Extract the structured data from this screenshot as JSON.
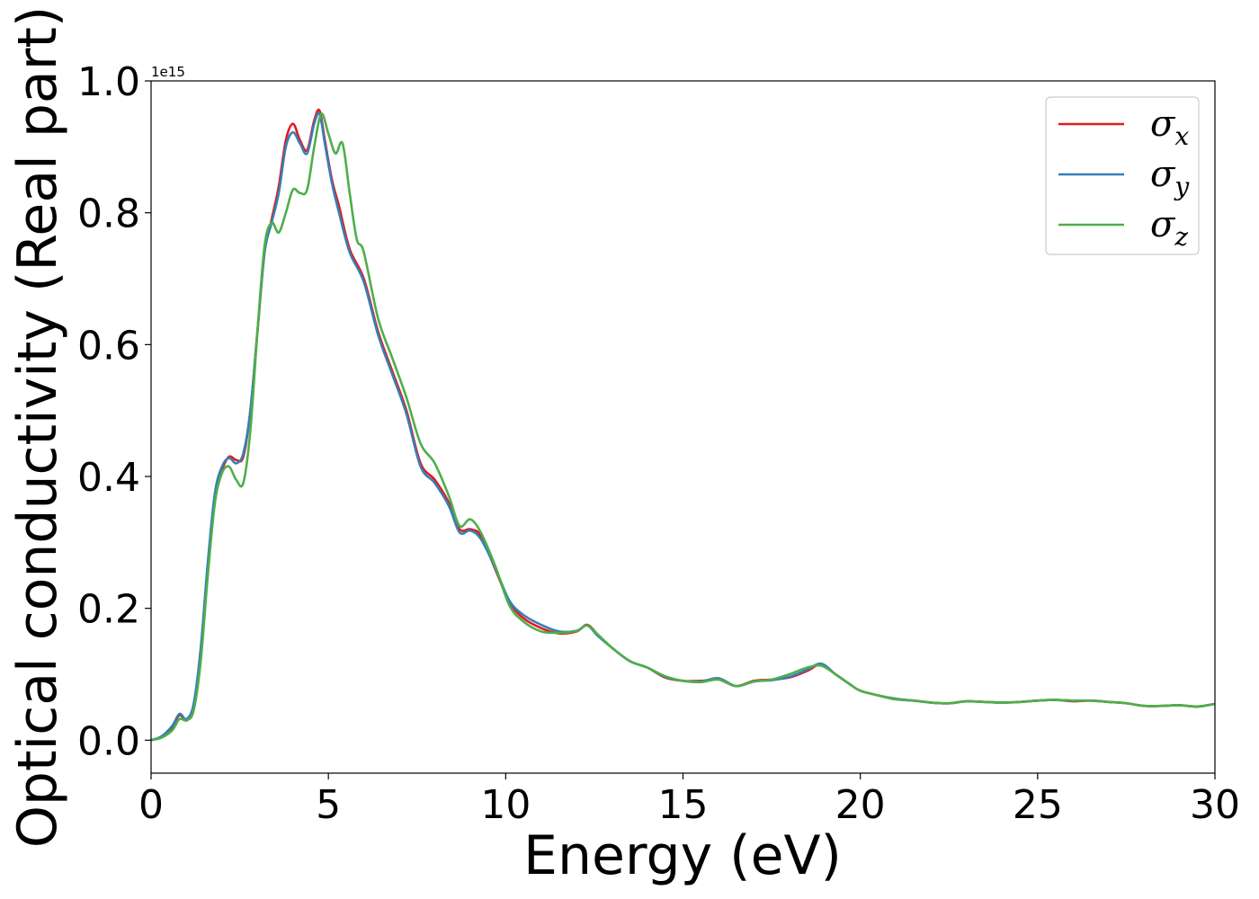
{
  "chart_data": {
    "type": "line",
    "title": "",
    "xlabel": "Energy (eV)",
    "ylabel": "Optical conductivity (Real part)",
    "y_offset_label": "1e15",
    "xlim": [
      0,
      30
    ],
    "ylim": [
      -0.05,
      1.0
    ],
    "xticks": [
      0,
      5,
      10,
      15,
      20,
      25,
      30
    ],
    "xtick_labels": [
      "0",
      "5",
      "10",
      "15",
      "20",
      "25",
      "30"
    ],
    "yticks": [
      0.0,
      0.2,
      0.4,
      0.6,
      0.8,
      1.0
    ],
    "ytick_labels": [
      "0.0",
      "0.2",
      "0.4",
      "0.6",
      "0.8",
      "1.0"
    ],
    "grid": false,
    "legend_position": "top-right",
    "series": [
      {
        "name": "σx",
        "legend_base": "σ",
        "legend_sub": "x",
        "color": "#e41a1c",
        "x": [
          0,
          0.3,
          0.6,
          0.8,
          1.0,
          1.2,
          1.4,
          1.6,
          1.8,
          2.0,
          2.2,
          2.4,
          2.6,
          2.8,
          3.0,
          3.2,
          3.4,
          3.6,
          3.8,
          4.0,
          4.2,
          4.4,
          4.6,
          4.75,
          4.9,
          5.1,
          5.3,
          5.6,
          6.0,
          6.4,
          6.8,
          7.2,
          7.6,
          8.0,
          8.4,
          8.7,
          9.0,
          9.3,
          9.7,
          10.1,
          10.5,
          11.0,
          11.5,
          12.0,
          12.3,
          12.6,
          13.0,
          13.5,
          14.0,
          14.5,
          15.0,
          15.5,
          16.0,
          16.5,
          17.0,
          17.5,
          18.0,
          18.5,
          18.9,
          19.3,
          19.7,
          20.0,
          20.5,
          21.0,
          21.5,
          22.0,
          22.5,
          23.0,
          23.5,
          24.0,
          24.5,
          25.0,
          25.5,
          26.0,
          26.5,
          27.0,
          27.5,
          28.0,
          28.5,
          29.0,
          29.5,
          30.0
        ],
        "y": [
          0.0,
          0.005,
          0.02,
          0.038,
          0.03,
          0.05,
          0.13,
          0.26,
          0.37,
          0.41,
          0.43,
          0.425,
          0.43,
          0.5,
          0.62,
          0.74,
          0.79,
          0.84,
          0.91,
          0.935,
          0.91,
          0.895,
          0.94,
          0.955,
          0.91,
          0.85,
          0.81,
          0.745,
          0.7,
          0.62,
          0.56,
          0.5,
          0.42,
          0.395,
          0.36,
          0.32,
          0.32,
          0.31,
          0.26,
          0.21,
          0.185,
          0.17,
          0.162,
          0.165,
          0.175,
          0.16,
          0.14,
          0.12,
          0.11,
          0.095,
          0.09,
          0.09,
          0.092,
          0.082,
          0.09,
          0.092,
          0.095,
          0.105,
          0.115,
          0.1,
          0.085,
          0.075,
          0.068,
          0.062,
          0.06,
          0.057,
          0.056,
          0.059,
          0.058,
          0.057,
          0.058,
          0.06,
          0.061,
          0.059,
          0.06,
          0.058,
          0.056,
          0.052,
          0.052,
          0.053,
          0.051,
          0.055
        ]
      },
      {
        "name": "σy",
        "legend_base": "σ",
        "legend_sub": "y",
        "color": "#377eb8",
        "x": [
          0,
          0.3,
          0.6,
          0.8,
          1.0,
          1.2,
          1.4,
          1.6,
          1.8,
          2.0,
          2.2,
          2.4,
          2.6,
          2.8,
          3.0,
          3.2,
          3.4,
          3.6,
          3.8,
          4.0,
          4.2,
          4.4,
          4.6,
          4.75,
          4.9,
          5.1,
          5.3,
          5.6,
          6.0,
          6.4,
          6.8,
          7.2,
          7.6,
          8.0,
          8.4,
          8.7,
          9.0,
          9.3,
          9.7,
          10.1,
          10.5,
          11.0,
          11.5,
          12.0,
          12.3,
          12.6,
          13.0,
          13.5,
          14.0,
          14.5,
          15.0,
          15.5,
          16.0,
          16.5,
          17.0,
          17.5,
          18.0,
          18.5,
          18.9,
          19.3,
          19.7,
          20.0,
          20.5,
          21.0,
          21.5,
          22.0,
          22.5,
          23.0,
          23.5,
          24.0,
          24.5,
          25.0,
          25.5,
          26.0,
          26.5,
          27.0,
          27.5,
          28.0,
          28.5,
          29.0,
          29.5,
          30.0
        ],
        "y": [
          0.0,
          0.006,
          0.022,
          0.04,
          0.032,
          0.055,
          0.14,
          0.27,
          0.375,
          0.415,
          0.428,
          0.42,
          0.435,
          0.5,
          0.62,
          0.74,
          0.785,
          0.83,
          0.9,
          0.922,
          0.905,
          0.89,
          0.935,
          0.95,
          0.905,
          0.845,
          0.8,
          0.74,
          0.695,
          0.615,
          0.555,
          0.495,
          0.415,
          0.39,
          0.355,
          0.315,
          0.318,
          0.305,
          0.262,
          0.212,
          0.19,
          0.175,
          0.165,
          0.166,
          0.174,
          0.158,
          0.14,
          0.12,
          0.11,
          0.096,
          0.09,
          0.089,
          0.094,
          0.082,
          0.089,
          0.091,
          0.096,
          0.107,
          0.116,
          0.1,
          0.085,
          0.075,
          0.068,
          0.063,
          0.06,
          0.057,
          0.056,
          0.059,
          0.058,
          0.057,
          0.058,
          0.06,
          0.061,
          0.06,
          0.06,
          0.058,
          0.056,
          0.052,
          0.052,
          0.053,
          0.051,
          0.055
        ]
      },
      {
        "name": "σz",
        "legend_base": "σ",
        "legend_sub": "z",
        "color": "#4daf4a",
        "x": [
          0,
          0.3,
          0.6,
          0.8,
          1.0,
          1.2,
          1.4,
          1.6,
          1.8,
          2.0,
          2.2,
          2.4,
          2.6,
          2.8,
          3.0,
          3.2,
          3.4,
          3.6,
          3.8,
          4.0,
          4.2,
          4.4,
          4.6,
          4.8,
          5.0,
          5.2,
          5.4,
          5.6,
          5.8,
          6.0,
          6.4,
          6.8,
          7.2,
          7.6,
          8.0,
          8.4,
          8.7,
          9.0,
          9.3,
          9.7,
          10.1,
          10.5,
          11.0,
          11.5,
          12.0,
          12.3,
          12.6,
          13.0,
          13.5,
          14.0,
          14.5,
          15.0,
          15.5,
          16.0,
          16.5,
          17.0,
          17.5,
          18.0,
          18.5,
          18.9,
          19.3,
          19.7,
          20.0,
          20.5,
          21.0,
          21.5,
          22.0,
          22.5,
          23.0,
          23.5,
          24.0,
          24.5,
          25.0,
          25.5,
          26.0,
          26.5,
          27.0,
          27.5,
          28.0,
          28.5,
          29.0,
          29.5,
          30.0
        ],
        "y": [
          0.0,
          0.004,
          0.015,
          0.032,
          0.03,
          0.045,
          0.12,
          0.25,
          0.36,
          0.405,
          0.415,
          0.395,
          0.39,
          0.47,
          0.62,
          0.75,
          0.785,
          0.77,
          0.8,
          0.835,
          0.83,
          0.835,
          0.9,
          0.95,
          0.92,
          0.89,
          0.905,
          0.83,
          0.76,
          0.74,
          0.64,
          0.58,
          0.52,
          0.45,
          0.42,
          0.37,
          0.325,
          0.335,
          0.315,
          0.265,
          0.205,
          0.18,
          0.165,
          0.163,
          0.166,
          0.174,
          0.16,
          0.14,
          0.12,
          0.11,
          0.097,
          0.09,
          0.088,
          0.092,
          0.082,
          0.089,
          0.092,
          0.1,
          0.11,
          0.113,
          0.1,
          0.085,
          0.075,
          0.068,
          0.062,
          0.06,
          0.057,
          0.056,
          0.059,
          0.058,
          0.057,
          0.058,
          0.06,
          0.061,
          0.06,
          0.06,
          0.058,
          0.056,
          0.052,
          0.052,
          0.053,
          0.051,
          0.055
        ]
      }
    ]
  }
}
